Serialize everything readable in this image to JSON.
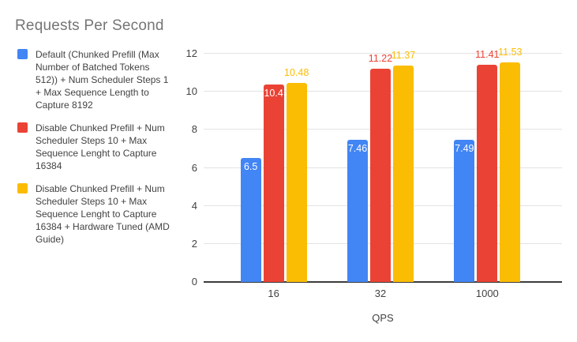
{
  "chart_data": {
    "type": "bar",
    "title": "Requests Per Second",
    "xlabel": "QPS",
    "ylabel": "",
    "categories": [
      "16",
      "32",
      "1000"
    ],
    "series": [
      {
        "name": "Default (Chunked Prefill (Max Number of Batched Tokens 512)) + Num Scheduler Steps 1 + Max Sequence Length to Capture 8192",
        "color": "#4285F4",
        "values": [
          6.5,
          7.46,
          7.49
        ],
        "labels_inside": [
          true,
          true,
          true
        ]
      },
      {
        "name": "Disable Chunked Prefill + Num Scheduler Steps 10 + Max Sequence Lenght to Capture 16384",
        "color": "#EA4335",
        "values": [
          10.4,
          11.22,
          11.41
        ],
        "labels_inside": [
          true,
          false,
          false
        ]
      },
      {
        "name": "Disable Chunked Prefill + Num Scheduler Steps 10 + Max Sequence Lenght to Capture 16384 + Hardware Tuned (AMD Guide)",
        "color": "#FBBC04",
        "values": [
          10.48,
          11.37,
          11.53
        ],
        "labels_inside": [
          false,
          false,
          false
        ]
      }
    ],
    "ylim": [
      0,
      12
    ],
    "yticks": [
      0,
      2,
      4,
      6,
      8,
      10,
      12
    ],
    "grid": true,
    "legend_position": "left",
    "title_color": "#757575",
    "axis_text_color": "#424242",
    "data_label_inside_color": "#ffffff"
  }
}
